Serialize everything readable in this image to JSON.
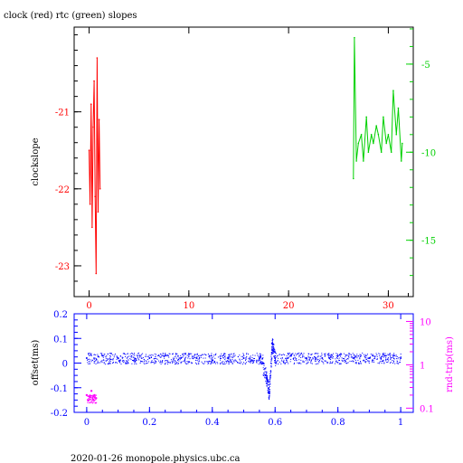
{
  "header": {
    "title": "clock (red) rtc (green) slopes"
  },
  "footer": {
    "text": "2020-01-26  monopole.physics.ubc.ca"
  },
  "colors": {
    "red": "#ff0000",
    "green": "#00d000",
    "blue": "#0000ff",
    "magenta": "#ff00ff",
    "axis": "#000000"
  },
  "chart_data": [
    {
      "type": "line",
      "title": "clock (red) rtc (green) slopes",
      "ylabel": "clockslope",
      "xlim": [
        -1.5,
        32.5
      ],
      "ylim": [
        -23.4,
        -19.9
      ],
      "y2lim": [
        -18.2,
        -2.9
      ],
      "x_ticks": [
        "0",
        "10",
        "20",
        "30"
      ],
      "y_ticks": [
        "-21",
        "-22",
        "-23"
      ],
      "y2_ticks": [
        "-5",
        "-10",
        "-15"
      ],
      "series": [
        {
          "name": "clock",
          "color": "red",
          "axis": "left",
          "x": [
            0.0,
            0.1,
            0.2,
            0.3,
            0.4,
            0.5,
            0.6,
            0.7,
            0.8,
            0.9,
            1.0,
            1.1
          ],
          "y": [
            -21.5,
            -22.2,
            -20.9,
            -22.5,
            -21.2,
            -20.6,
            -22.1,
            -23.1,
            -20.3,
            -22.3,
            -21.1,
            -22.0
          ]
        },
        {
          "name": "rtc",
          "color": "green",
          "axis": "right",
          "x": [
            26.5,
            26.6,
            26.8,
            27.0,
            27.3,
            27.5,
            27.8,
            28.0,
            28.3,
            28.5,
            28.8,
            29.0,
            29.3,
            29.5,
            29.8,
            30.0,
            30.3,
            30.5,
            30.8,
            31.0,
            31.3,
            31.4
          ],
          "y": [
            -11.5,
            -3.5,
            -10.5,
            -9.5,
            -9.0,
            -10.5,
            -8.0,
            -10.0,
            -9.0,
            -9.5,
            -8.5,
            -9.0,
            -10.0,
            -8.0,
            -9.5,
            -9.0,
            -10.0,
            -6.5,
            -9.0,
            -7.5,
            -10.5,
            -9.5
          ]
        }
      ]
    },
    {
      "type": "scatter",
      "ylabel": "offset(ms)",
      "y2label": "rnd-trip(ms)",
      "xlim": [
        -0.04,
        1.04
      ],
      "ylim": [
        -0.2,
        0.2
      ],
      "y2_scale": "log",
      "y2lim": [
        0.08,
        15
      ],
      "x_ticks": [
        "0",
        "0.2",
        "0.4",
        "0.6",
        "0.8",
        "1"
      ],
      "y_ticks": [
        "0.2",
        "0.1",
        "0",
        "-0.1",
        "-0.2"
      ],
      "y2_ticks": [
        "10",
        "1",
        "0.1"
      ],
      "series": [
        {
          "name": "offset",
          "color": "blue",
          "axis": "left",
          "x": [
            0.0,
            0.05,
            0.1,
            0.15,
            0.2,
            0.25,
            0.3,
            0.35,
            0.4,
            0.45,
            0.5,
            0.55,
            0.57,
            0.58,
            0.59,
            0.6,
            0.65,
            0.7,
            0.75,
            0.8,
            0.85,
            0.9,
            0.95,
            1.0
          ],
          "y": [
            0.02,
            0.03,
            0.02,
            0.01,
            0.02,
            0.03,
            0.02,
            0.02,
            0.01,
            0.02,
            0.02,
            0.02,
            -0.05,
            -0.12,
            0.08,
            0.02,
            0.03,
            0.02,
            0.02,
            0.03,
            0.02,
            0.02,
            0.03,
            0.02
          ]
        },
        {
          "name": "rnd-trip",
          "color": "magenta",
          "axis": "right",
          "x": [
            0.0,
            0.005,
            0.01,
            0.015,
            0.02,
            0.025,
            0.03
          ],
          "y": [
            0.2,
            0.15,
            0.18,
            0.25,
            0.16,
            0.2,
            0.17
          ]
        }
      ]
    }
  ]
}
